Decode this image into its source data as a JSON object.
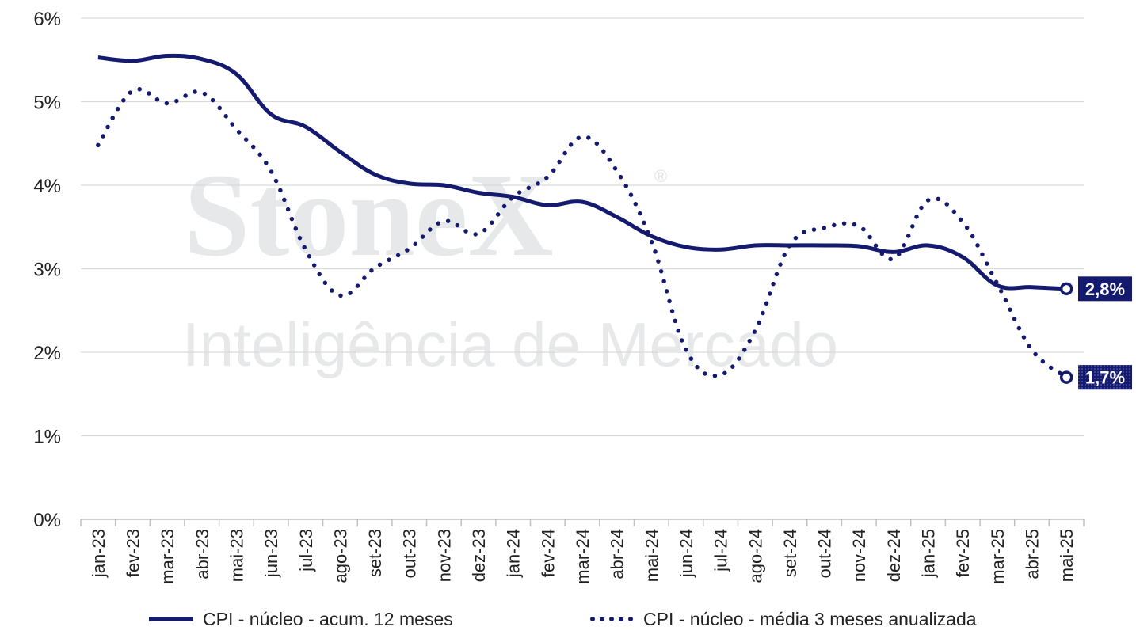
{
  "chart_data": {
    "type": "line",
    "title": "",
    "xlabel": "",
    "ylabel": "",
    "ylim": [
      0,
      6
    ],
    "y_ticks": [
      "0%",
      "1%",
      "2%",
      "3%",
      "4%",
      "5%",
      "6%"
    ],
    "grid": true,
    "legend_position": "bottom",
    "categories": [
      "jan-23",
      "fev-23",
      "mar-23",
      "abr-23",
      "mai-23",
      "jun-23",
      "jul-23",
      "ago-23",
      "set-23",
      "out-23",
      "nov-23",
      "dez-23",
      "jan-24",
      "fev-24",
      "mar-24",
      "abr-24",
      "mai-24",
      "jun-24",
      "jul-24",
      "ago-24",
      "set-24",
      "out-24",
      "nov-24",
      "dez-24",
      "jan-25",
      "fev-25",
      "mar-25",
      "abr-25",
      "mai-25"
    ],
    "series": [
      {
        "name": "CPI - núcleo - acum. 12 meses",
        "style": "solid",
        "color": "#141a6e",
        "values": [
          5.53,
          5.49,
          5.55,
          5.51,
          5.33,
          4.85,
          4.7,
          4.4,
          4.13,
          4.02,
          4.0,
          3.91,
          3.86,
          3.76,
          3.8,
          3.62,
          3.39,
          3.26,
          3.23,
          3.28,
          3.28,
          3.28,
          3.27,
          3.2,
          3.28,
          3.14,
          2.8,
          2.78,
          2.76
        ],
        "end_label": "2,8%"
      },
      {
        "name": "CPI - núcleo - média 3 meses anualizada",
        "style": "dotted",
        "color": "#141a6e",
        "values": [
          4.48,
          5.13,
          4.98,
          5.11,
          4.67,
          4.17,
          3.23,
          2.68,
          3.01,
          3.24,
          3.57,
          3.42,
          3.86,
          4.1,
          4.58,
          4.17,
          3.33,
          2.03,
          1.73,
          2.26,
          3.28,
          3.49,
          3.51,
          3.12,
          3.82,
          3.56,
          2.82,
          2.03,
          1.7
        ],
        "end_label": "1,7%"
      }
    ]
  },
  "watermark": {
    "brand": "StoneX",
    "registered": "®",
    "subtitle": "Inteligência de Mercado"
  },
  "colors": {
    "series": "#141a6e",
    "grid": "#d9d9d9",
    "axis": "#bfbfbf",
    "watermark": "#e7e8ea"
  }
}
